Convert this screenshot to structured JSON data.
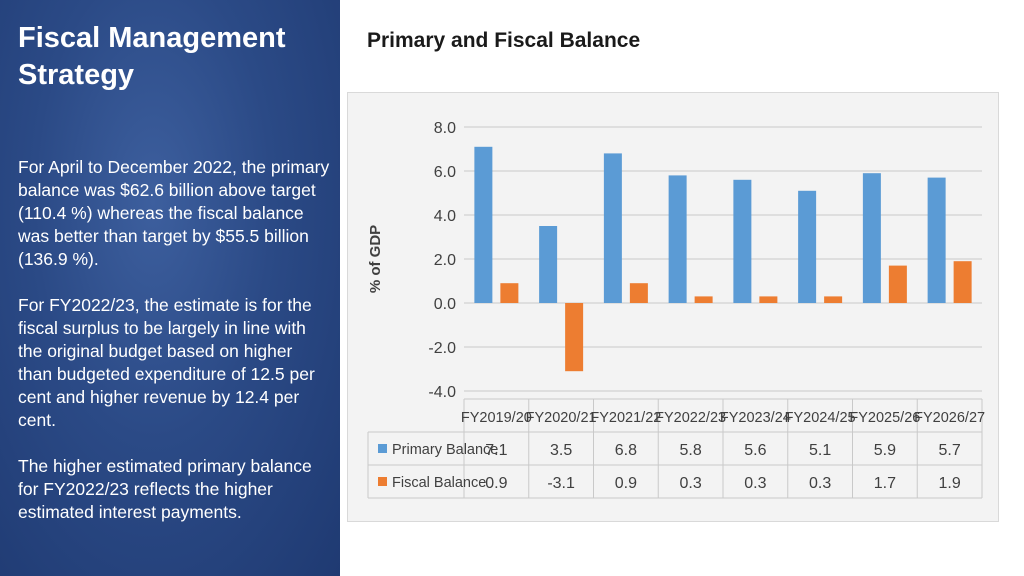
{
  "left_panel": {
    "title": "Fiscal Management Strategy",
    "paragraphs": [
      "For April to December 2022, the primary balance was $62.6 billion above target (110.4 %) whereas the fiscal balance was better than target by $55.5 billion (136.9 %).",
      "For FY2022/23, the estimate is for the fiscal surplus to be largely in line with the original budget based on higher than budgeted expenditure of 12.5 per cent and higher revenue  by 12.4 per cent.",
      "The higher estimated primary balance for FY2022/23 reflects the higher estimated interest payments."
    ]
  },
  "chart_title": "Primary and Fiscal Balance",
  "colors": {
    "primary": "#5b9bd5",
    "fiscal": "#ed7d31",
    "grid": "#c9c9c9"
  },
  "chart_data": {
    "type": "bar",
    "title": "Primary and Fiscal Balance",
    "ylabel": "% of GDP",
    "xlabel": "",
    "ylim": [
      -4.0,
      8.0
    ],
    "yticks": [
      "8.0",
      "6.0",
      "4.0",
      "2.0",
      "0.0",
      "-2.0",
      "-4.0"
    ],
    "categories": [
      "FY2019/20",
      "FY2020/21",
      "FY2021/22",
      "FY2022/23",
      "FY2023/24",
      "FY2024/25",
      "FY2025/26",
      "FY2026/27"
    ],
    "series": [
      {
        "name": "Primary Balance",
        "values": [
          7.1,
          3.5,
          6.8,
          5.8,
          5.6,
          5.1,
          5.9,
          5.7
        ],
        "labels": [
          "7.1",
          "3.5",
          "6.8",
          "5.8",
          "5.6",
          "5.1",
          "5.9",
          "5.7"
        ]
      },
      {
        "name": "Fiscal Balance",
        "values": [
          0.9,
          -3.1,
          0.9,
          0.3,
          0.3,
          0.3,
          1.7,
          1.9
        ],
        "labels": [
          "0.9",
          "-3.1",
          "0.9",
          "0.3",
          "0.3",
          "0.3",
          "1.7",
          "1.9"
        ]
      }
    ],
    "legend": "data-table"
  }
}
